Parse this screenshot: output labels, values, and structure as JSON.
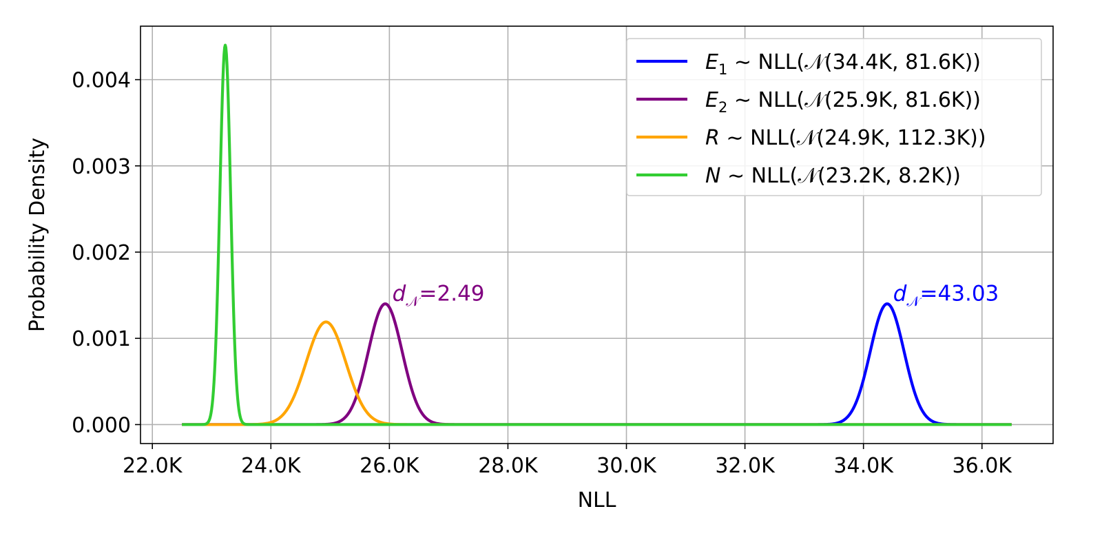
{
  "chart_data": {
    "type": "line",
    "title": "",
    "xlabel": "NLL",
    "ylabel": "Probability Density",
    "xlim": [
      21800,
      37200
    ],
    "ylim": [
      -0.00022,
      0.00462
    ],
    "x_ticks": [
      22000,
      24000,
      26000,
      28000,
      30000,
      32000,
      34000,
      36000
    ],
    "x_tick_labels": [
      "22.0K",
      "24.0K",
      "26.0K",
      "28.0K",
      "30.0K",
      "32.0K",
      "34.0K",
      "36.0K"
    ],
    "y_ticks": [
      0.0,
      0.001,
      0.002,
      0.003,
      0.004
    ],
    "y_tick_labels": [
      "0.000",
      "0.001",
      "0.002",
      "0.003",
      "0.004"
    ],
    "x_range": [
      22500,
      36500
    ],
    "grid": true,
    "legend_position": "top-right",
    "series": [
      {
        "symbol": "E",
        "subscript": "1",
        "dist_text": "∼ NLL(𝒩(34.4K, 81.6K))",
        "mean": 34400,
        "peak": 0.0014,
        "color": "#0000ff"
      },
      {
        "symbol": "E",
        "subscript": "2",
        "dist_text": "∼ NLL(𝒩(25.9K, 81.6K))",
        "mean": 25930,
        "peak": 0.0014,
        "color": "#800080"
      },
      {
        "symbol": "R",
        "subscript": "",
        "dist_text": "∼ NLL(𝒩(24.9K, 112.3K))",
        "mean": 24930,
        "peak": 0.00119,
        "color": "#ffa500"
      },
      {
        "symbol": "N",
        "subscript": "",
        "dist_text": "∼ NLL(𝒩(23.2K, 8.2K))",
        "mean": 23230,
        "peak": 0.0044,
        "color": "#32cd32"
      }
    ],
    "annotations": [
      {
        "d_text": "d",
        "sub_text": "𝒩",
        "value_text": "=2.49",
        "x": 26050,
        "y": 0.00147,
        "color": "#800080"
      },
      {
        "d_text": "d",
        "sub_text": "𝒩",
        "value_text": "=43.03",
        "x": 34500,
        "y": 0.00147,
        "color": "#0000ff"
      }
    ]
  }
}
